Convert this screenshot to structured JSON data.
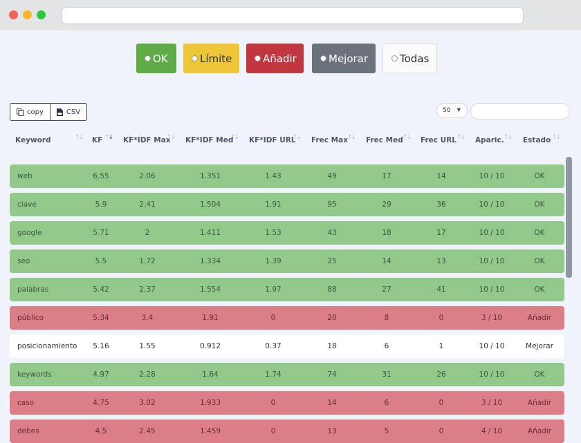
{
  "filters": {
    "ok": "OK",
    "limite": "Límite",
    "anadir": "Añadir",
    "mejorar": "Mejorar",
    "todas": "Todas"
  },
  "toolbar": {
    "copy_label": "copy",
    "csv_label": "CSV",
    "page_length": "50"
  },
  "table": {
    "columns": [
      "Keyword",
      "KF",
      "KF*IDF Max",
      "KF*IDF Med",
      "KF*IDF URL",
      "Frec Max",
      "Frec Med",
      "Frec URL",
      "Aparic.",
      "Estado"
    ],
    "rows": [
      {
        "status": "ok",
        "cells": [
          "web",
          "6.55",
          "2.06",
          "1.351",
          "1.43",
          "49",
          "17",
          "14",
          "10 / 10",
          "OK"
        ]
      },
      {
        "status": "ok",
        "cells": [
          "clave",
          "5.9",
          "2.41",
          "1.504",
          "1.91",
          "95",
          "29",
          "36",
          "10 / 10",
          "OK"
        ]
      },
      {
        "status": "ok",
        "cells": [
          "google",
          "5.71",
          "2",
          "1.411",
          "1.53",
          "43",
          "18",
          "17",
          "10 / 10",
          "OK"
        ]
      },
      {
        "status": "ok",
        "cells": [
          "seo",
          "5.5",
          "1.72",
          "1.334",
          "1.39",
          "25",
          "14",
          "13",
          "10 / 10",
          "OK"
        ]
      },
      {
        "status": "ok",
        "cells": [
          "palabras",
          "5.42",
          "2.37",
          "1.554",
          "1.97",
          "88",
          "27",
          "41",
          "10 / 10",
          "OK"
        ]
      },
      {
        "status": "anadir",
        "cells": [
          "público",
          "5.34",
          "3.4",
          "1.91",
          "0",
          "20",
          "8",
          "0",
          "3 / 10",
          "Añadir"
        ]
      },
      {
        "status": "mejorar",
        "cells": [
          "posicionamiento",
          "5.16",
          "1.55",
          "0.912",
          "0.37",
          "18",
          "6",
          "1",
          "10 / 10",
          "Mejorar"
        ]
      },
      {
        "status": "ok",
        "cells": [
          "keywords",
          "4.97",
          "2.28",
          "1.64",
          "1.74",
          "74",
          "31",
          "26",
          "10 / 10",
          "OK"
        ]
      },
      {
        "status": "anadir",
        "cells": [
          "caso",
          "4.75",
          "3.02",
          "1.933",
          "0",
          "14",
          "6",
          "0",
          "3 / 10",
          "Añadir"
        ]
      },
      {
        "status": "anadir",
        "cells": [
          "debes",
          "4.5",
          "2.45",
          "1.459",
          "0",
          "13",
          "5",
          "0",
          "4 / 10",
          "Añadir"
        ]
      }
    ]
  }
}
